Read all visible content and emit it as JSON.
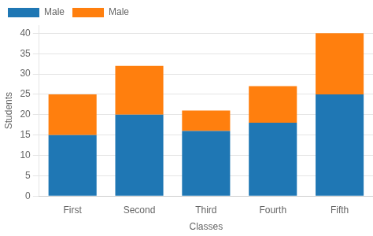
{
  "chart_data": {
    "type": "bar",
    "stacked": true,
    "categories": [
      "First",
      "Second",
      "Third",
      "Fourth",
      "Fifth"
    ],
    "series": [
      {
        "name": "Male",
        "color": "#1f77b4",
        "values": [
          15,
          20,
          16,
          18,
          25
        ]
      },
      {
        "name": "Male",
        "color": "#ff7f0e",
        "values": [
          10,
          12,
          5,
          9,
          15
        ]
      }
    ],
    "xlabel": "Classes",
    "ylabel": "Students",
    "ylim": [
      0,
      42
    ],
    "yticks": [
      0,
      5,
      10,
      15,
      20,
      25,
      30,
      35,
      40
    ],
    "grid": true,
    "legend": "upper left"
  }
}
